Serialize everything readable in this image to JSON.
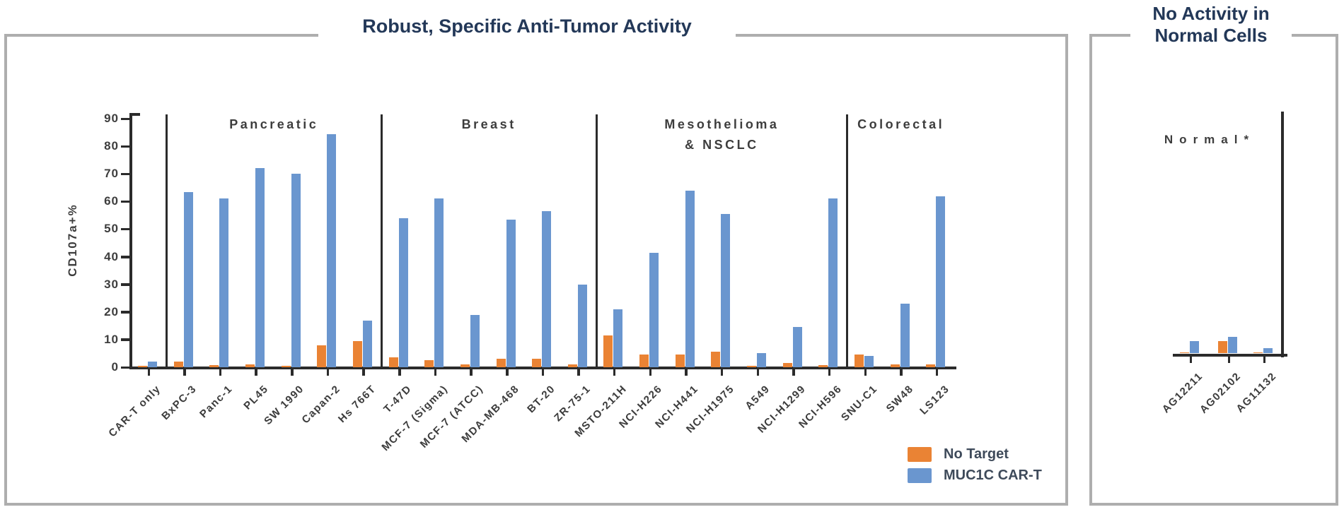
{
  "legend": {
    "items": [
      {
        "label": "No Target",
        "color": "#EA8334"
      },
      {
        "label": "MUC1C CAR-T",
        "color": "#6A96CF"
      }
    ]
  },
  "chart_data": [
    {
      "type": "bar",
      "panel": "left",
      "title": "Robust, Specific Anti-Tumor Activity",
      "ylabel": "CD107a+%",
      "ylim": [
        0,
        90
      ],
      "y_ticks": [
        0,
        10,
        20,
        30,
        40,
        50,
        60,
        70,
        80,
        90
      ],
      "grid": false,
      "legend_position": "bottom-right",
      "series_names": [
        "No Target",
        "MUC1C CAR-T"
      ],
      "groups": [
        {
          "label_lines": [],
          "categories": [
            {
              "name": "CAR-T only",
              "no_target": 0.4,
              "muc1c_car_t": 2
            }
          ]
        },
        {
          "label_lines": [
            "Pancreatic"
          ],
          "categories": [
            {
              "name": "BxPC-3",
              "no_target": 2,
              "muc1c_car_t": 63.5
            },
            {
              "name": "Panc-1",
              "no_target": 0.8,
              "muc1c_car_t": 61
            },
            {
              "name": "PL45",
              "no_target": 1,
              "muc1c_car_t": 72
            },
            {
              "name": "SW 1990",
              "no_target": 0.5,
              "muc1c_car_t": 70
            },
            {
              "name": "Capan-2",
              "no_target": 8,
              "muc1c_car_t": 84.5
            },
            {
              "name": "Hs 766T",
              "no_target": 9.5,
              "muc1c_car_t": 17
            }
          ]
        },
        {
          "label_lines": [
            "Breast"
          ],
          "categories": [
            {
              "name": "T-47D",
              "no_target": 3.5,
              "muc1c_car_t": 54
            },
            {
              "name": "MCF-7 (Sigma)",
              "no_target": 2.5,
              "muc1c_car_t": 61
            },
            {
              "name": "MCF-7 (ATCC)",
              "no_target": 1,
              "muc1c_car_t": 19
            },
            {
              "name": "MDA-MB-468",
              "no_target": 3,
              "muc1c_car_t": 53.5
            },
            {
              "name": "BT-20",
              "no_target": 3,
              "muc1c_car_t": 56.5
            },
            {
              "name": "ZR-75-1",
              "no_target": 1,
              "muc1c_car_t": 30
            }
          ]
        },
        {
          "label_lines": [
            "Mesothelioma",
            "& NSCLC"
          ],
          "categories": [
            {
              "name": "MSTO-211H",
              "no_target": 11.5,
              "muc1c_car_t": 21
            },
            {
              "name": "NCI-H226",
              "no_target": 4.5,
              "muc1c_car_t": 41.5
            },
            {
              "name": "NCI-H441",
              "no_target": 4.5,
              "muc1c_car_t": 64
            },
            {
              "name": "NCI-H1975",
              "no_target": 5.5,
              "muc1c_car_t": 55.5
            },
            {
              "name": "A549",
              "no_target": 0.5,
              "muc1c_car_t": 5
            },
            {
              "name": "NCI-H1299",
              "no_target": 1.5,
              "muc1c_car_t": 14.5
            },
            {
              "name": "NCI-H596",
              "no_target": 0.7,
              "muc1c_car_t": 61
            }
          ]
        },
        {
          "label_lines": [
            "Colorectal"
          ],
          "categories": [
            {
              "name": "SNU-C1",
              "no_target": 4.5,
              "muc1c_car_t": 4
            },
            {
              "name": "SW48",
              "no_target": 1,
              "muc1c_car_t": 23
            },
            {
              "name": "LS123",
              "no_target": 1,
              "muc1c_car_t": 62
            }
          ]
        }
      ]
    },
    {
      "type": "bar",
      "panel": "right",
      "title": "No Activity in Normal Cells",
      "title_lines": [
        "No Activity in",
        "Normal Cells"
      ],
      "group_label": "Normal*",
      "ylim": [
        0,
        90
      ],
      "grid": false,
      "series_names": [
        "No Target",
        "MUC1C CAR-T"
      ],
      "categories": [
        {
          "name": "AG12211",
          "no_target": 0.5,
          "muc1c_car_t": 4.5
        },
        {
          "name": "AG02102",
          "no_target": 4.5,
          "muc1c_car_t": 6
        },
        {
          "name": "AG11132",
          "no_target": 0.4,
          "muc1c_car_t": 2
        }
      ]
    }
  ]
}
